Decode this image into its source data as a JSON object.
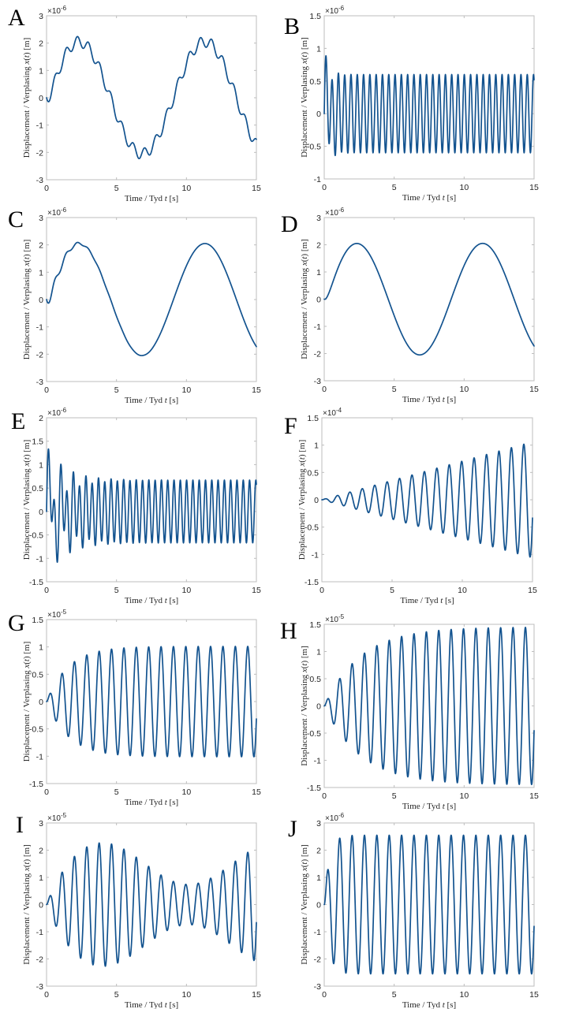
{
  "figure": {
    "line_color": "#13538f",
    "axis_color": "#bdbdbd",
    "text_color": "#262626"
  },
  "chart_data": [
    {
      "id": "A",
      "type": "line",
      "letter": "A",
      "xlabel": "Time / Tyd t [s]",
      "ylabel": "Displacement / Verplasing x(t) [m]",
      "exponent": "×10^-6",
      "xlim": [
        0,
        15
      ],
      "ylim": [
        -3,
        3
      ],
      "xticks": [
        0,
        5,
        10,
        15
      ],
      "yticks": [
        -3,
        -2,
        -1,
        0,
        1,
        2,
        3
      ],
      "grid": false,
      "description": "Slow sinusoid (period ~9 s, amplitude ~2.05) with persistent fast ripple (period ~0.8 s)",
      "model": {
        "kind": "sum",
        "components": [
          {
            "amp": 2.05,
            "period": 9.0,
            "phase_mode": "forced_slow"
          },
          {
            "amp": 0.2,
            "period": 0.8,
            "decay": 0,
            "phase_mode": "ripple"
          }
        ]
      },
      "sample_points": [
        [
          0,
          0
        ],
        [
          0.8,
          1.2
        ],
        [
          1.6,
          2.05
        ],
        [
          2.0,
          1.85
        ],
        [
          2.4,
          2.25
        ],
        [
          3.2,
          1.7
        ],
        [
          4.0,
          0.65
        ],
        [
          4.8,
          -0.6
        ],
        [
          5.6,
          -1.65
        ],
        [
          6.5,
          -2.25
        ],
        [
          7.0,
          -1.85
        ],
        [
          7.4,
          -2.05
        ],
        [
          8.2,
          -1.2
        ],
        [
          9.0,
          0
        ],
        [
          9.6,
          1.2
        ],
        [
          10.6,
          2.05
        ],
        [
          11.4,
          2.25
        ],
        [
          12.2,
          1.7
        ],
        [
          13.0,
          0.65
        ],
        [
          13.8,
          -0.6
        ],
        [
          14.6,
          -1.7
        ],
        [
          15,
          -1.6
        ]
      ]
    },
    {
      "id": "B",
      "type": "line",
      "letter": "B",
      "xlabel": "Time / Tyd t [s]",
      "ylabel": "Displacement / Verplasing x(t) [m]",
      "exponent": "×10^-6",
      "xlim": [
        0,
        15
      ],
      "ylim": [
        -1,
        1.5
      ],
      "xticks": [
        0,
        5,
        10,
        15
      ],
      "yticks": [
        -1,
        -0.5,
        0,
        0.5,
        1,
        1.5
      ],
      "grid": false,
      "description": "Fast oscillation (period ~0.45 s) steady amplitude 0.6 with quickly decaying transient",
      "model": {
        "kind": "steady_plus_transient",
        "steady_amp": 0.6,
        "steady_period": 0.45,
        "transient_amp": 0.55,
        "transient_period": 0.9,
        "transient_decay": 0.35
      },
      "sample_points": [
        [
          0,
          0
        ],
        [
          0.28,
          1.12
        ],
        [
          0.55,
          -0.73
        ],
        [
          0.75,
          0.45
        ],
        [
          0.95,
          -0.58
        ],
        [
          1.2,
          0.64
        ],
        [
          1.65,
          0.6
        ],
        [
          2.1,
          0.6
        ],
        [
          15,
          0
        ]
      ]
    },
    {
      "id": "C",
      "type": "line",
      "letter": "C",
      "xlabel": "Time / Tyd t [s]",
      "ylabel": "Displacement / Verplasing x(t) [m]",
      "exponent": "×10^-6",
      "xlim": [
        0,
        15
      ],
      "ylim": [
        -3,
        3
      ],
      "xticks": [
        0,
        5,
        10,
        15
      ],
      "yticks": [
        -3,
        -2,
        -1,
        0,
        1,
        2,
        3
      ],
      "grid": false,
      "description": "Slow sinusoid (period ~9 s, amplitude ~2.05) with ripple that decays within ~4 s",
      "model": {
        "kind": "sum",
        "components": [
          {
            "amp": 2.05,
            "period": 9.0,
            "phase_mode": "forced_slow"
          },
          {
            "amp": 0.2,
            "period": 0.8,
            "decay": 1.6,
            "phase_mode": "ripple"
          }
        ]
      },
      "sample_points": [
        [
          0,
          0
        ],
        [
          0.8,
          1.15
        ],
        [
          1.7,
          1.95
        ],
        [
          2.4,
          2.1
        ],
        [
          3.4,
          1.55
        ],
        [
          5,
          -0.65
        ],
        [
          6.7,
          -2.05
        ],
        [
          9,
          0
        ],
        [
          11.3,
          2.05
        ],
        [
          15,
          -1.8
        ]
      ]
    },
    {
      "id": "D",
      "type": "line",
      "letter": "D",
      "xlabel": "Time / Tyd t [s]",
      "ylabel": "Displacement / Verplasing x(t) [m]",
      "exponent": "×10^-6",
      "xlim": [
        0,
        15
      ],
      "ylim": [
        -3,
        3
      ],
      "xticks": [
        0,
        5,
        10,
        15
      ],
      "yticks": [
        -3,
        -2,
        -1,
        0,
        1,
        2,
        3
      ],
      "grid": false,
      "description": "Clean slow sinusoid (period ~9 s, amplitude ~2.05) starting smoothly from zero",
      "model": {
        "kind": "sum",
        "components": [
          {
            "amp": 2.05,
            "period": 9.0,
            "phase_mode": "forced_slow"
          }
        ]
      },
      "sample_points": [
        [
          0,
          0
        ],
        [
          2.35,
          2.05
        ],
        [
          6.85,
          -2.05
        ],
        [
          11.35,
          2.05
        ],
        [
          15,
          -1.7
        ]
      ]
    },
    {
      "id": "E",
      "type": "line",
      "letter": "E",
      "xlabel": "Time / Tyd t [s]",
      "ylabel": "Displacement / Verplasing x(t) [m]",
      "exponent": "×10^-6",
      "xlim": [
        0,
        15
      ],
      "ylim": [
        -1.5,
        2
      ],
      "xticks": [
        0,
        5,
        10,
        15
      ],
      "yticks": [
        -1.5,
        -1,
        -0.5,
        0,
        0.5,
        1,
        1.5,
        2
      ],
      "grid": false,
      "description": "Fast steady oscillation amplitude ~0.67 (period ~0.45 s) plus decaying transient at ~0.9 s period",
      "model": {
        "kind": "steady_plus_transient",
        "steady_amp": 0.67,
        "steady_period": 0.45,
        "transient_amp": 0.95,
        "transient_period": 0.9,
        "transient_decay": 1.4
      },
      "sample_points": [
        [
          0,
          0
        ],
        [
          0.3,
          1.53
        ],
        [
          0.6,
          -1.35
        ],
        [
          0.85,
          0.17
        ],
        [
          1.0,
          -0.27
        ],
        [
          1.2,
          1.12
        ],
        [
          1.5,
          -1.0
        ],
        [
          1.7,
          0.37
        ],
        [
          1.9,
          -0.45
        ],
        [
          2.1,
          0.9
        ],
        [
          2.4,
          -0.83
        ],
        [
          2.6,
          0.5
        ],
        [
          3.0,
          0.8
        ],
        [
          5,
          0.67
        ],
        [
          15,
          -0.22
        ]
      ]
    },
    {
      "id": "F",
      "type": "line",
      "letter": "F",
      "xlabel": "Time / Tyd t [s]",
      "ylabel": "Displacement / Verplasing x(t) [m]",
      "exponent": "×10^-4",
      "xlim": [
        0,
        15
      ],
      "ylim": [
        -1.5,
        1.5
      ],
      "xticks": [
        0,
        5,
        10,
        15
      ],
      "yticks": [
        -1.5,
        -1,
        -0.5,
        0,
        0.5,
        1,
        1.5
      ],
      "grid": false,
      "description": "Undamped resonance: linearly growing oscillation, period ~0.885 s, reaching ~1.05 at t=15",
      "model": {
        "kind": "resonance_linear",
        "period": 0.885,
        "growth_per_s": 0.0707
      },
      "sample_points": [
        [
          0,
          0
        ],
        [
          0.45,
          0.03
        ],
        [
          0.9,
          -0.06
        ],
        [
          1.35,
          0.1
        ],
        [
          4.9,
          0.35
        ],
        [
          7.6,
          0.54
        ],
        [
          10.3,
          0.73
        ],
        [
          13.0,
          0.92
        ],
        [
          14.3,
          -1.02
        ],
        [
          14.8,
          1.05
        ],
        [
          15,
          0.25
        ]
      ]
    },
    {
      "id": "G",
      "type": "line",
      "letter": "G",
      "xlabel": "Time / Tyd t [s]",
      "ylabel": "Displacement / Verplasing x(t) [m]",
      "exponent": "×10^-5",
      "xlim": [
        0,
        15
      ],
      "ylim": [
        -1.5,
        1.5
      ],
      "xticks": [
        0,
        5,
        10,
        15
      ],
      "yticks": [
        -1.5,
        -1,
        -0.5,
        0,
        0.5,
        1,
        1.5
      ],
      "grid": false,
      "description": "Damped resonance: envelope grows and saturates at ~1.0, period ~0.885 s",
      "model": {
        "kind": "resonance_saturating",
        "period": 0.885,
        "amp": 1.01,
        "tau": 1.55
      },
      "sample_points": [
        [
          0,
          0
        ],
        [
          0.45,
          0.27
        ],
        [
          0.9,
          -0.47
        ],
        [
          1.35,
          0.62
        ],
        [
          1.8,
          -0.72
        ],
        [
          2.2,
          0.8
        ],
        [
          3.1,
          0.9
        ],
        [
          4.0,
          0.96
        ],
        [
          5.8,
          1.0
        ],
        [
          15,
          0.25
        ]
      ]
    },
    {
      "id": "H",
      "type": "line",
      "letter": "H",
      "xlabel": "Time / Tyd t [s]",
      "ylabel": "Displacement / Verplasing x(t) [m]",
      "exponent": "×10^-5",
      "xlim": [
        0,
        15
      ],
      "ylim": [
        -1.5,
        1.5
      ],
      "xticks": [
        0,
        5,
        10,
        15
      ],
      "yticks": [
        -1.5,
        -1,
        -0.5,
        0,
        0.5,
        1,
        1.5
      ],
      "grid": false,
      "description": "Lightly damped resonance: envelope saturates at ~1.45, period ~0.885 s",
      "model": {
        "kind": "resonance_saturating",
        "period": 0.885,
        "amp": 1.45,
        "tau": 2.6
      },
      "sample_points": [
        [
          0,
          0
        ],
        [
          0.45,
          0.28
        ],
        [
          0.9,
          -0.52
        ],
        [
          1.35,
          0.7
        ],
        [
          1.8,
          -0.85
        ],
        [
          2.25,
          0.96
        ],
        [
          3.1,
          1.13
        ],
        [
          4.0,
          1.25
        ],
        [
          5.8,
          1.37
        ],
        [
          8.5,
          1.43
        ],
        [
          15,
          0.33
        ]
      ]
    },
    {
      "id": "I",
      "type": "line",
      "letter": "I",
      "xlabel": "Time / Tyd t [s]",
      "ylabel": "Displacement / Verplasing x(t) [m]",
      "exponent": "×10^-5",
      "xlim": [
        0,
        15
      ],
      "ylim": [
        -3,
        3
      ],
      "xticks": [
        0,
        5,
        10,
        15
      ],
      "yticks": [
        -3,
        -2,
        -1,
        0,
        1,
        2,
        3
      ],
      "grid": false,
      "description": "Beating near resonance: envelope max ~2.3 at t≈6 s, min ~0.75 at t≈12.5 s, period ~0.885 s",
      "model": {
        "kind": "beating",
        "period": 0.885,
        "amp1": 1.52,
        "amp2": 0.78,
        "beat_period": 12.6
      },
      "sample_points": [
        [
          0,
          0
        ],
        [
          0.45,
          0.3
        ],
        [
          0.9,
          -0.58
        ],
        [
          1.3,
          0.85
        ],
        [
          2.2,
          1.35
        ],
        [
          3.0,
          1.75
        ],
        [
          3.9,
          2.05
        ],
        [
          4.7,
          2.25
        ],
        [
          5.6,
          2.3
        ],
        [
          6.5,
          2.28
        ],
        [
          7.4,
          2.15
        ],
        [
          8.2,
          1.93
        ],
        [
          9.1,
          1.67
        ],
        [
          9.9,
          1.37
        ],
        [
          10.8,
          1.05
        ],
        [
          11.6,
          0.83
        ],
        [
          12.4,
          0.73
        ],
        [
          13.2,
          0.8
        ],
        [
          14.0,
          1.0
        ],
        [
          14.8,
          1.22
        ],
        [
          15,
          0.1
        ]
      ]
    },
    {
      "id": "J",
      "type": "line",
      "letter": "J",
      "xlabel": "Time / Tyd t [s]",
      "ylabel": "Displacement / Verplasing x(t) [m]",
      "exponent": "×10^-6",
      "xlim": [
        0,
        15
      ],
      "ylim": [
        -3,
        3
      ],
      "xticks": [
        0,
        5,
        10,
        15
      ],
      "yticks": [
        -3,
        -2,
        -1,
        0,
        1,
        2,
        3
      ],
      "grid": false,
      "description": "Steady oscillation amplitude ~2.55, period ~0.885 s, after short start-up transient",
      "model": {
        "kind": "resonance_saturating",
        "period": 0.885,
        "amp": 2.55,
        "tau": 0.35
      },
      "sample_points": [
        [
          0,
          0
        ],
        [
          0.45,
          1.92
        ],
        [
          0.9,
          -2.4
        ],
        [
          1.35,
          2.52
        ],
        [
          1.8,
          -2.55
        ],
        [
          15,
          0.6
        ]
      ]
    }
  ]
}
